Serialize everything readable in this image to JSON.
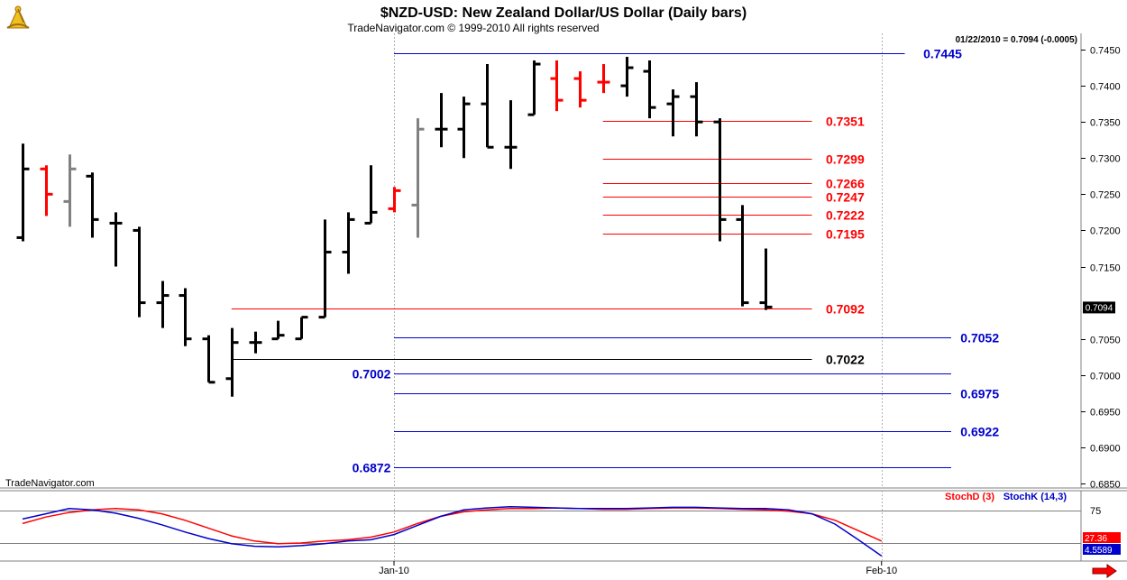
{
  "header": {
    "title": "$NZD-USD:  New Zealand Dollar/US Dollar  (Daily bars)",
    "copyright": "TradeNavigator.com © 1999-2010 All rights reserved",
    "last_value_note": "01/22/2010 = 0.7094 (-0.0005)",
    "watermark": "TradeNavigator.com"
  },
  "colors": {
    "up_bar": "#000000",
    "red_bar": "#ff0000",
    "gray_bar": "#808080",
    "blue_level": "#0000cc",
    "red_level": "#ff0000",
    "black_level": "#000000",
    "stoch_d": "#ff0000",
    "stoch_k": "#0000cc"
  },
  "icons": {
    "logo": "sextant-logo-icon",
    "scroll": "red-arrow-right-icon"
  },
  "chart_data": {
    "type": "ohlc",
    "ylim": [
      0.685,
      0.746
    ],
    "y_ticks": [
      "0.7450",
      "0.7400",
      "0.7350",
      "0.7300",
      "0.7250",
      "0.7200",
      "0.7150",
      "0.7050",
      "0.7000",
      "0.6950",
      "0.6900",
      "0.6850"
    ],
    "x_labels": [
      {
        "label": "Jan-10",
        "bar": 16
      },
      {
        "label": "Feb-10",
        "bar": 37
      }
    ],
    "last_price_label": "0.7094",
    "bars": [
      {
        "o": 0.719,
        "h": 0.732,
        "l": 0.7185,
        "c": 0.7285,
        "color": "black"
      },
      {
        "o": 0.7285,
        "h": 0.729,
        "l": 0.722,
        "c": 0.725,
        "color": "red"
      },
      {
        "o": 0.724,
        "h": 0.7305,
        "l": 0.7205,
        "c": 0.7285,
        "color": "gray"
      },
      {
        "o": 0.7275,
        "h": 0.728,
        "l": 0.719,
        "c": 0.7215,
        "color": "black"
      },
      {
        "o": 0.721,
        "h": 0.7225,
        "l": 0.715,
        "c": 0.721,
        "color": "black"
      },
      {
        "o": 0.72,
        "h": 0.7205,
        "l": 0.708,
        "c": 0.71,
        "color": "black"
      },
      {
        "o": 0.71,
        "h": 0.713,
        "l": 0.7065,
        "c": 0.711,
        "color": "black"
      },
      {
        "o": 0.711,
        "h": 0.712,
        "l": 0.704,
        "c": 0.705,
        "color": "black"
      },
      {
        "o": 0.705,
        "h": 0.7055,
        "l": 0.699,
        "c": 0.699,
        "color": "black"
      },
      {
        "o": 0.6995,
        "h": 0.7065,
        "l": 0.697,
        "c": 0.7045,
        "color": "black"
      },
      {
        "o": 0.7045,
        "h": 0.706,
        "l": 0.703,
        "c": 0.7045,
        "color": "black"
      },
      {
        "o": 0.705,
        "h": 0.7075,
        "l": 0.705,
        "c": 0.7055,
        "color": "black"
      },
      {
        "o": 0.705,
        "h": 0.708,
        "l": 0.705,
        "c": 0.708,
        "color": "black"
      },
      {
        "o": 0.708,
        "h": 0.7215,
        "l": 0.708,
        "c": 0.717,
        "color": "black"
      },
      {
        "o": 0.717,
        "h": 0.7225,
        "l": 0.714,
        "c": 0.7215,
        "color": "black"
      },
      {
        "o": 0.721,
        "h": 0.729,
        "l": 0.721,
        "c": 0.7225,
        "color": "black"
      },
      {
        "o": 0.723,
        "h": 0.726,
        "l": 0.7225,
        "c": 0.7255,
        "color": "red"
      },
      {
        "o": 0.7235,
        "h": 0.7355,
        "l": 0.719,
        "c": 0.734,
        "color": "gray"
      },
      {
        "o": 0.734,
        "h": 0.739,
        "l": 0.7315,
        "c": 0.734,
        "color": "black"
      },
      {
        "o": 0.734,
        "h": 0.7385,
        "l": 0.73,
        "c": 0.7375,
        "color": "black"
      },
      {
        "o": 0.7375,
        "h": 0.743,
        "l": 0.7315,
        "c": 0.7315,
        "color": "black"
      },
      {
        "o": 0.7315,
        "h": 0.738,
        "l": 0.7285,
        "c": 0.7315,
        "color": "black"
      },
      {
        "o": 0.736,
        "h": 0.7435,
        "l": 0.736,
        "c": 0.743,
        "color": "black"
      },
      {
        "o": 0.741,
        "h": 0.7435,
        "l": 0.7365,
        "c": 0.738,
        "color": "red"
      },
      {
        "o": 0.741,
        "h": 0.742,
        "l": 0.737,
        "c": 0.738,
        "color": "red"
      },
      {
        "o": 0.7405,
        "h": 0.743,
        "l": 0.739,
        "c": 0.7405,
        "color": "red"
      },
      {
        "o": 0.74,
        "h": 0.744,
        "l": 0.7385,
        "c": 0.7425,
        "color": "black"
      },
      {
        "o": 0.742,
        "h": 0.7435,
        "l": 0.7355,
        "c": 0.737,
        "color": "black"
      },
      {
        "o": 0.7375,
        "h": 0.7395,
        "l": 0.733,
        "c": 0.7385,
        "color": "black"
      },
      {
        "o": 0.7385,
        "h": 0.7405,
        "l": 0.733,
        "c": 0.735,
        "color": "black"
      },
      {
        "o": 0.735,
        "h": 0.7355,
        "l": 0.7185,
        "c": 0.7215,
        "color": "black"
      },
      {
        "o": 0.7215,
        "h": 0.7235,
        "l": 0.7095,
        "c": 0.71,
        "color": "black"
      },
      {
        "o": 0.71,
        "h": 0.7175,
        "l": 0.709,
        "c": 0.7094,
        "color": "black"
      }
    ],
    "levels": [
      {
        "value": 0.7445,
        "label": "0.7445",
        "color": "blue",
        "from_bar": 16,
        "to_bar": 38,
        "label_side": "right",
        "label_bar": 38.8
      },
      {
        "value": 0.7351,
        "label": "0.7351",
        "color": "red",
        "from_bar": 25,
        "to_bar": 34,
        "label_side": "right",
        "label_bar": 34.6
      },
      {
        "value": 0.7299,
        "label": "0.7299",
        "color": "red",
        "from_bar": 25,
        "to_bar": 34,
        "label_side": "right",
        "label_bar": 34.6
      },
      {
        "value": 0.7266,
        "label": "0.7266",
        "color": "red",
        "from_bar": 25,
        "to_bar": 34,
        "label_side": "right",
        "label_bar": 34.6
      },
      {
        "value": 0.7247,
        "label": "0.7247",
        "color": "red",
        "from_bar": 25,
        "to_bar": 34,
        "label_side": "right",
        "label_bar": 34.6
      },
      {
        "value": 0.7222,
        "label": "0.7222",
        "color": "red",
        "from_bar": 25,
        "to_bar": 34,
        "label_side": "right",
        "label_bar": 34.6
      },
      {
        "value": 0.7195,
        "label": "0.7195",
        "color": "red",
        "from_bar": 25,
        "to_bar": 34,
        "label_side": "right",
        "label_bar": 34.6
      },
      {
        "value": 0.7092,
        "label": "0.7092",
        "color": "red",
        "from_bar": 9,
        "to_bar": 34,
        "label_side": "right",
        "label_bar": 34.6
      },
      {
        "value": 0.7052,
        "label": "0.7052",
        "color": "blue",
        "from_bar": 16,
        "to_bar": 40,
        "label_side": "right",
        "label_bar": 40.4
      },
      {
        "value": 0.7022,
        "label": "0.7022",
        "color": "black",
        "from_bar": 9,
        "to_bar": 34,
        "label_side": "right",
        "label_bar": 34.6
      },
      {
        "value": 0.7002,
        "label": "0.7002",
        "color": "blue",
        "from_bar": 16,
        "to_bar": 40,
        "label_side": "left",
        "label_bar": 14.2
      },
      {
        "value": 0.6975,
        "label": "0.6975",
        "color": "blue",
        "from_bar": 16,
        "to_bar": 40,
        "label_side": "right",
        "label_bar": 40.4
      },
      {
        "value": 0.6922,
        "label": "0.6922",
        "color": "blue",
        "from_bar": 16,
        "to_bar": 40,
        "label_side": "right",
        "label_bar": 40.4
      },
      {
        "value": 0.6872,
        "label": "0.6872",
        "color": "blue",
        "from_bar": 16,
        "to_bar": 40,
        "label_side": "left",
        "label_bar": 14.2
      }
    ],
    "stochastic": {
      "legend_d": "StochD (3)",
      "legend_k": "StochK (14,3)",
      "level_label": "75",
      "d_value_label": "27.36",
      "k_value_label": "4.5589",
      "ylim": [
        0,
        100
      ],
      "levels": [
        75,
        25
      ],
      "d": [
        55,
        65,
        72,
        76,
        78,
        76,
        70,
        60,
        48,
        36,
        28,
        24,
        25,
        28,
        30,
        34,
        42,
        55,
        66,
        73,
        76,
        78,
        78,
        79,
        78,
        77,
        77,
        78,
        79,
        79,
        78,
        77,
        76,
        74,
        70,
        60,
        44,
        28
      ],
      "k": [
        62,
        70,
        78,
        76,
        71,
        63,
        53,
        42,
        32,
        24,
        20,
        19,
        21,
        24,
        28,
        30,
        38,
        52,
        66,
        76,
        79,
        81,
        80,
        79,
        78,
        78,
        78,
        79,
        80,
        80,
        79,
        78,
        78,
        76,
        70,
        54,
        30,
        5
      ]
    }
  }
}
